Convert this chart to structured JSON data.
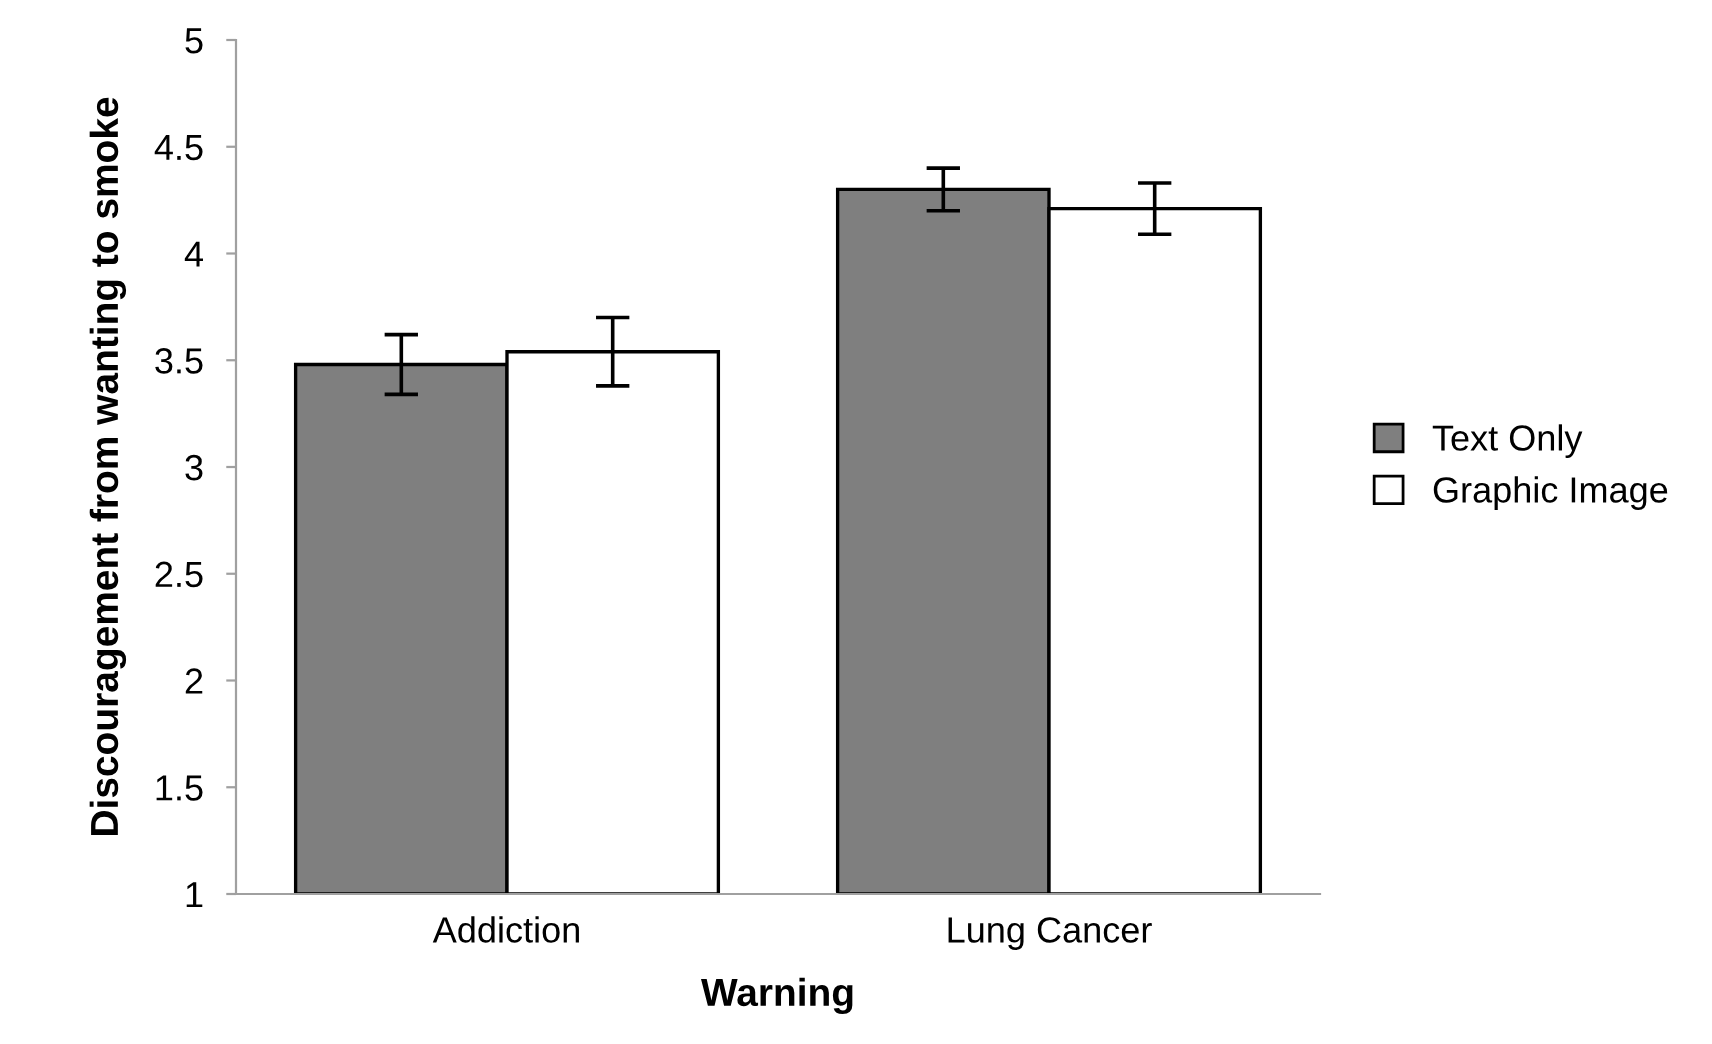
{
  "chart_data": {
    "type": "bar",
    "xlabel": "Warning",
    "ylabel": "Discouragement from wanting to smoke",
    "categories": [
      "Addiction",
      "Lung Cancer"
    ],
    "series": [
      {
        "name": "Text Only",
        "color": "#7f7f7f",
        "values": [
          3.48,
          4.3
        ],
        "errors": [
          0.14,
          0.1
        ]
      },
      {
        "name": "Graphic Image",
        "color": "#ffffff",
        "values": [
          3.54,
          4.21
        ],
        "errors": [
          0.16,
          0.12
        ]
      }
    ],
    "ylim": [
      1,
      5
    ],
    "yticks": [
      1,
      1.5,
      2,
      2.5,
      3,
      3.5,
      4,
      4.5,
      5
    ],
    "grid": false,
    "legend": "right"
  }
}
